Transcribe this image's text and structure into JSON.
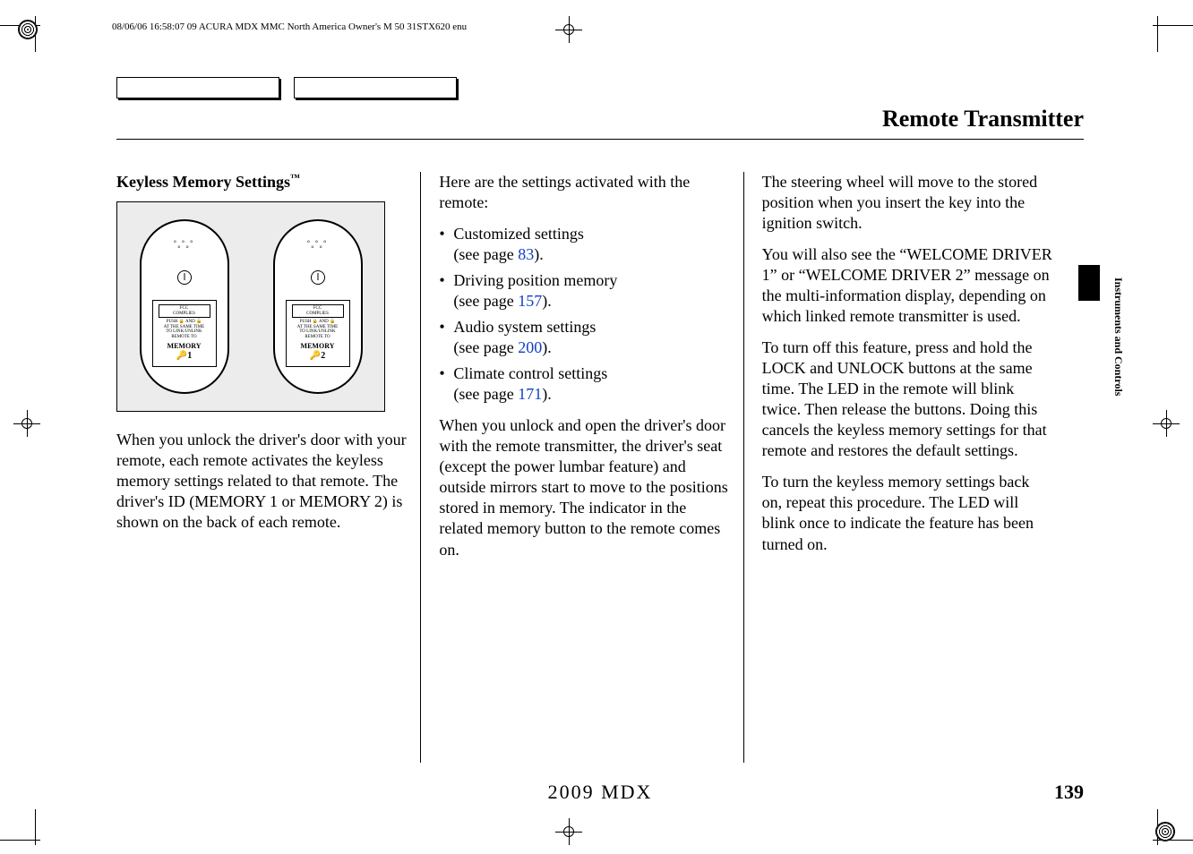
{
  "header": {
    "meta_line": "08/06/06 16:58:07    09 ACURA MDX MMC North America Owner's M 50 31STX620 enu"
  },
  "page_title": "Remote Transmitter",
  "side_section_label": "Instruments and Controls",
  "col1": {
    "subhead": "Keyless Memory Settings",
    "fob1_mem": "MEMORY",
    "fob1_num": "1",
    "fob2_mem": "MEMORY",
    "fob2_num": "2",
    "p1": "When you unlock the driver's door with your remote, each remote activates the keyless memory settings related to that remote. The driver's ID (MEMORY 1 or MEMORY 2) is shown on the back of each remote."
  },
  "col2": {
    "intro": "Here are the settings activated with the remote:",
    "b1a": "Customized settings",
    "b1b": "(see page ",
    "b1p": "83",
    "b1c": ").",
    "b2a": "Driving position memory",
    "b2b": "(see page ",
    "b2p": "157",
    "b2c": ").",
    "b3a": "Audio system settings",
    "b3b": "(see page ",
    "b3p": "200",
    "b3c": ").",
    "b4a": "Climate control settings",
    "b4b": "(see page ",
    "b4p": "171",
    "b4c": ").",
    "p1": "When you unlock and open the driver's door with the remote transmitter, the driver's seat (except the power lumbar feature) and outside mirrors start to move to the positions stored in memory. The indicator in the related memory button to the remote comes on."
  },
  "col3": {
    "p1": "The steering wheel will move to the stored position when you insert the key into the ignition switch.",
    "p2": "You will also see the “WELCOME DRIVER 1” or “WELCOME DRIVER 2” message on the multi-information display, depending on which linked remote transmitter is used.",
    "p3": "To turn off this feature, press and hold the LOCK and UNLOCK buttons at the same time. The LED in the remote will blink twice. Then release the buttons. Doing this cancels the keyless memory settings for that remote and restores the default settings.",
    "p4": "To turn the keyless memory settings back on, repeat this procedure. The LED will blink once to indicate the feature has been turned on."
  },
  "footer": {
    "center": "2009  MDX",
    "page_number": "139"
  }
}
